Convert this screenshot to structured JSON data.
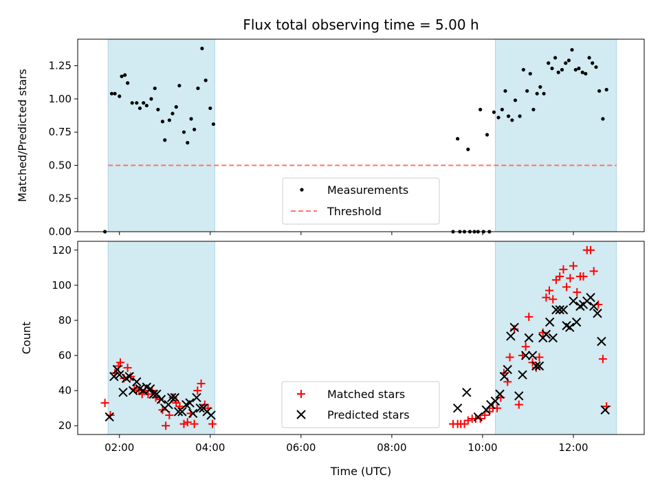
{
  "chart_data": {
    "title": "Flux total observing time = 5.00 h",
    "xlabel": "Time (UTC)",
    "x_tick_labels": [
      "02:00",
      "04:00",
      "06:00",
      "08:00",
      "10:00",
      "12:00"
    ],
    "x_ticks_hours": [
      2,
      4,
      6,
      8,
      10,
      12
    ],
    "xlim_hours": [
      1.08,
      13.56
    ],
    "shaded_intervals_hours": [
      [
        1.75,
        4.1
      ],
      [
        10.28,
        12.95
      ]
    ],
    "shade_color": "#add8e6",
    "panels": [
      {
        "type": "scatter",
        "ylabel": "Matched/Predicted stars",
        "ylim": [
          0,
          1.45
        ],
        "y_ticks": [
          0.0,
          0.25,
          0.5,
          0.75,
          1.0,
          1.25
        ],
        "y_tick_labels": [
          "0.00",
          "0.25",
          "0.50",
          "0.75",
          "1.00",
          "1.25"
        ],
        "legend_position": "lower-center",
        "threshold": {
          "name": "Threshold",
          "value": 0.5,
          "color": "#ff7070"
        },
        "series": [
          {
            "name": "Measurements",
            "color": "#000000",
            "marker": "dot",
            "points": [
              [
                1.68,
                0.0
              ],
              [
                1.83,
                1.04
              ],
              [
                1.9,
                1.04
              ],
              [
                2.0,
                1.02
              ],
              [
                2.05,
                1.17
              ],
              [
                2.12,
                1.18
              ],
              [
                2.18,
                1.12
              ],
              [
                2.28,
                0.97
              ],
              [
                2.38,
                0.97
              ],
              [
                2.45,
                0.93
              ],
              [
                2.53,
                0.97
              ],
              [
                2.6,
                0.95
              ],
              [
                2.7,
                1.0
              ],
              [
                2.78,
                1.08
              ],
              [
                2.85,
                0.92
              ],
              [
                2.95,
                0.83
              ],
              [
                3.0,
                0.69
              ],
              [
                3.1,
                0.84
              ],
              [
                3.17,
                0.89
              ],
              [
                3.25,
                0.94
              ],
              [
                3.32,
                1.1
              ],
              [
                3.42,
                0.75
              ],
              [
                3.5,
                0.67
              ],
              [
                3.58,
                0.85
              ],
              [
                3.65,
                0.77
              ],
              [
                3.73,
                1.08
              ],
              [
                3.82,
                1.38
              ],
              [
                3.9,
                1.14
              ],
              [
                4.0,
                0.93
              ],
              [
                4.07,
                0.81
              ],
              [
                9.35,
                0.0
              ],
              [
                9.45,
                0.7
              ],
              [
                9.5,
                0.0
              ],
              [
                9.6,
                0.0
              ],
              [
                9.68,
                0.62
              ],
              [
                9.72,
                0.0
              ],
              [
                9.82,
                0.0
              ],
              [
                9.9,
                0.0
              ],
              [
                9.95,
                0.92
              ],
              [
                10.02,
                0.0
              ],
              [
                10.1,
                0.73
              ],
              [
                10.15,
                0.0
              ],
              [
                10.25,
                0.9
              ],
              [
                10.35,
                0.86
              ],
              [
                10.43,
                0.92
              ],
              [
                10.5,
                1.06
              ],
              [
                10.57,
                0.87
              ],
              [
                10.65,
                0.84
              ],
              [
                10.72,
                0.99
              ],
              [
                10.82,
                0.87
              ],
              [
                10.9,
                1.22
              ],
              [
                10.98,
                1.06
              ],
              [
                11.05,
                1.19
              ],
              [
                11.12,
                0.92
              ],
              [
                11.2,
                1.04
              ],
              [
                11.27,
                1.09
              ],
              [
                11.35,
                1.04
              ],
              [
                11.45,
                1.27
              ],
              [
                11.53,
                1.23
              ],
              [
                11.6,
                1.31
              ],
              [
                11.67,
                1.2
              ],
              [
                11.75,
                1.22
              ],
              [
                11.83,
                1.27
              ],
              [
                11.9,
                1.29
              ],
              [
                11.97,
                1.37
              ],
              [
                12.05,
                1.22
              ],
              [
                12.12,
                1.23
              ],
              [
                12.2,
                1.2
              ],
              [
                12.27,
                1.19
              ],
              [
                12.35,
                1.31
              ],
              [
                12.42,
                1.27
              ],
              [
                12.5,
                1.24
              ],
              [
                12.57,
                1.06
              ],
              [
                12.65,
                0.85
              ],
              [
                12.73,
                1.07
              ]
            ]
          }
        ]
      },
      {
        "type": "scatter",
        "ylabel": "Count",
        "ylim": [
          15,
          125
        ],
        "y_ticks": [
          20,
          40,
          60,
          80,
          100,
          120
        ],
        "y_tick_labels": [
          "20",
          "40",
          "60",
          "80",
          "100",
          "120"
        ],
        "legend_position": "lower-center",
        "series": [
          {
            "name": "Matched stars",
            "color": "#ff0000",
            "marker": "plus",
            "points": [
              [
                1.68,
                33
              ],
              [
                1.8,
                26
              ],
              [
                1.9,
                50
              ],
              [
                1.98,
                54
              ],
              [
                2.02,
                56
              ],
              [
                2.1,
                47
              ],
              [
                2.18,
                53
              ],
              [
                2.25,
                48
              ],
              [
                2.33,
                41
              ],
              [
                2.43,
                40
              ],
              [
                2.5,
                38
              ],
              [
                2.57,
                40
              ],
              [
                2.63,
                38
              ],
              [
                2.72,
                40
              ],
              [
                2.8,
                36
              ],
              [
                2.88,
                35
              ],
              [
                2.95,
                29
              ],
              [
                3.02,
                20
              ],
              [
                3.1,
                26
              ],
              [
                3.18,
                36
              ],
              [
                3.25,
                33
              ],
              [
                3.33,
                31
              ],
              [
                3.42,
                21
              ],
              [
                3.5,
                22
              ],
              [
                3.57,
                27
              ],
              [
                3.65,
                21
              ],
              [
                3.72,
                40
              ],
              [
                3.8,
                44
              ],
              [
                3.88,
                32
              ],
              [
                3.95,
                30
              ],
              [
                4.05,
                21
              ],
              [
                9.35,
                21
              ],
              [
                9.45,
                21
              ],
              [
                9.52,
                21
              ],
              [
                9.6,
                21
              ],
              [
                9.68,
                23
              ],
              [
                9.77,
                24
              ],
              [
                9.85,
                24
              ],
              [
                9.95,
                24
              ],
              [
                10.05,
                26
              ],
              [
                10.15,
                28
              ],
              [
                10.23,
                30
              ],
              [
                10.32,
                30
              ],
              [
                10.4,
                36
              ],
              [
                10.47,
                50
              ],
              [
                10.55,
                45
              ],
              [
                10.6,
                59
              ],
              [
                10.7,
                75
              ],
              [
                10.8,
                32
              ],
              [
                10.88,
                60
              ],
              [
                10.95,
                65
              ],
              [
                11.02,
                82
              ],
              [
                11.1,
                56
              ],
              [
                11.18,
                53
              ],
              [
                11.25,
                59
              ],
              [
                11.33,
                73
              ],
              [
                11.4,
                93
              ],
              [
                11.47,
                97
              ],
              [
                11.55,
                92
              ],
              [
                11.62,
                103
              ],
              [
                11.7,
                105
              ],
              [
                11.78,
                109
              ],
              [
                11.85,
                99
              ],
              [
                11.93,
                104
              ],
              [
                12.0,
                111
              ],
              [
                12.08,
                96
              ],
              [
                12.15,
                105
              ],
              [
                12.22,
                105
              ],
              [
                12.3,
                120
              ],
              [
                12.38,
                120
              ],
              [
                12.45,
                108
              ],
              [
                12.55,
                89
              ],
              [
                12.65,
                58
              ],
              [
                12.73,
                31
              ]
            ]
          },
          {
            "name": "Predicted stars",
            "color": "#000000",
            "marker": "x",
            "points": [
              [
                1.78,
                25
              ],
              [
                1.88,
                48
              ],
              [
                1.95,
                52
              ],
              [
                2.0,
                49
              ],
              [
                2.08,
                39
              ],
              [
                2.15,
                47
              ],
              [
                2.22,
                48
              ],
              [
                2.3,
                40
              ],
              [
                2.38,
                45
              ],
              [
                2.45,
                41
              ],
              [
                2.52,
                40
              ],
              [
                2.6,
                42
              ],
              [
                2.68,
                41
              ],
              [
                2.75,
                38
              ],
              [
                2.82,
                38
              ],
              [
                2.92,
                35
              ],
              [
                3.0,
                30
              ],
              [
                3.08,
                32
              ],
              [
                3.15,
                36
              ],
              [
                3.22,
                36
              ],
              [
                3.3,
                28
              ],
              [
                3.38,
                28
              ],
              [
                3.47,
                32
              ],
              [
                3.55,
                33
              ],
              [
                3.62,
                27
              ],
              [
                3.7,
                36
              ],
              [
                3.78,
                30
              ],
              [
                3.85,
                30
              ],
              [
                3.93,
                28
              ],
              [
                4.02,
                26
              ],
              [
                9.45,
                30
              ],
              [
                9.65,
                39
              ],
              [
                9.9,
                25
              ],
              [
                10.08,
                29
              ],
              [
                10.18,
                32
              ],
              [
                10.28,
                34
              ],
              [
                10.38,
                38
              ],
              [
                10.48,
                48
              ],
              [
                10.55,
                52
              ],
              [
                10.62,
                71
              ],
              [
                10.7,
                76
              ],
              [
                10.8,
                37
              ],
              [
                10.88,
                49
              ],
              [
                10.95,
                60
              ],
              [
                11.02,
                70
              ],
              [
                11.1,
                60
              ],
              [
                11.18,
                54
              ],
              [
                11.25,
                54
              ],
              [
                11.33,
                70
              ],
              [
                11.4,
                72
              ],
              [
                11.48,
                79
              ],
              [
                11.55,
                70
              ],
              [
                11.62,
                86
              ],
              [
                11.7,
                86
              ],
              [
                11.78,
                86
              ],
              [
                11.85,
                77
              ],
              [
                11.92,
                76
              ],
              [
                12.0,
                91
              ],
              [
                12.07,
                79
              ],
              [
                12.15,
                88
              ],
              [
                12.22,
                89
              ],
              [
                12.3,
                91
              ],
              [
                12.38,
                93
              ],
              [
                12.45,
                88
              ],
              [
                12.53,
                84
              ],
              [
                12.62,
                68
              ],
              [
                12.7,
                29
              ]
            ]
          }
        ]
      }
    ]
  }
}
